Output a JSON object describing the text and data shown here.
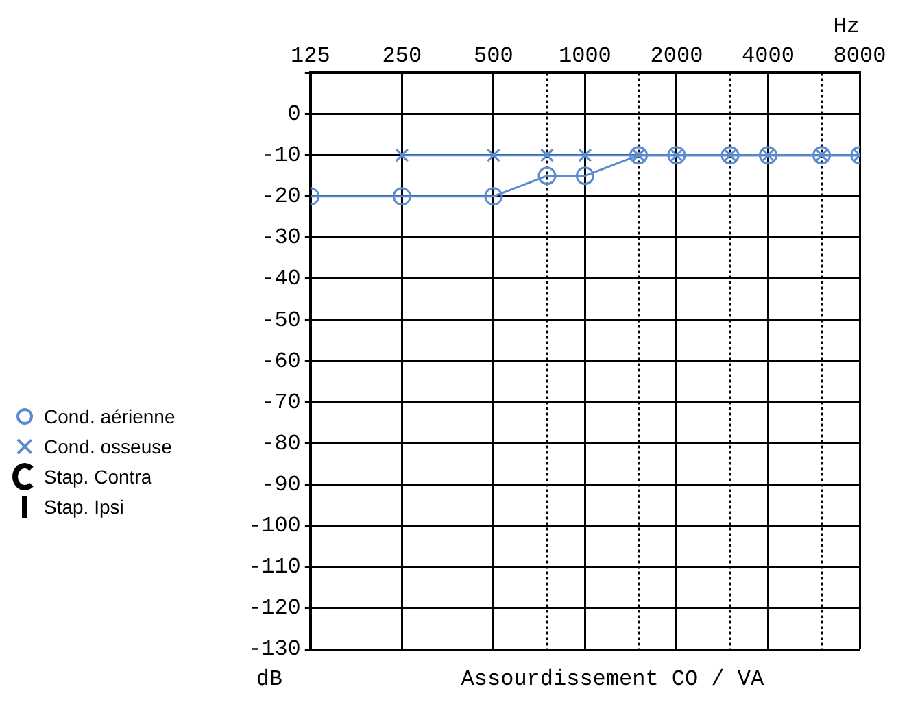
{
  "chart_data": {
    "type": "line",
    "xlabel": "Hz",
    "ylabel": "dB",
    "annotations": [
      "Assourdissement CO / VA"
    ],
    "x": [
      125,
      250,
      500,
      750,
      1000,
      1500,
      2000,
      3000,
      4000,
      6000,
      8000
    ],
    "series": [
      {
        "name": "Cond. aérienne",
        "color": "#5b8bd0",
        "marker": "circle",
        "values": [
          -20,
          -20,
          -20,
          -15,
          -15,
          -10,
          -10,
          -10,
          -10,
          -10,
          -10
        ]
      },
      {
        "name": "Cond. osseuse",
        "color": "#5b8bd0",
        "marker": "cross",
        "values": [
          null,
          -10,
          -10,
          -10,
          -10,
          -10,
          -10,
          -10,
          -10,
          -10,
          -10
        ]
      },
      {
        "name": "Stap. Contra",
        "color": "#000000",
        "marker": "none",
        "values": [
          null,
          null,
          null,
          null,
          null,
          null,
          null,
          null,
          null,
          null,
          null
        ]
      },
      {
        "name": "Stap. Ipsi",
        "color": "#000000",
        "marker": "none",
        "values": [
          null,
          null,
          null,
          null,
          null,
          null,
          null,
          null,
          null,
          null,
          null
        ]
      }
    ],
    "log": "x",
    "xlim": [
      125,
      8000
    ],
    "xticks": [
      125,
      250,
      500,
      {
        "value": 750,
        "label": null
      },
      1000,
      {
        "value": 1500,
        "label": null
      },
      2000,
      {
        "value": 3000,
        "label": null
      },
      4000,
      {
        "value": 6000,
        "label": null
      },
      8000
    ],
    "ylim": [
      -130,
      10
    ],
    "yticks": [
      -130,
      -120,
      -110,
      -100,
      -90,
      -80,
      -70,
      -60,
      -50,
      -40,
      -30,
      -20,
      -10,
      0,
      {
        "value": 10,
        "label": null
      }
    ],
    "grid": true,
    "legend": "left"
  }
}
